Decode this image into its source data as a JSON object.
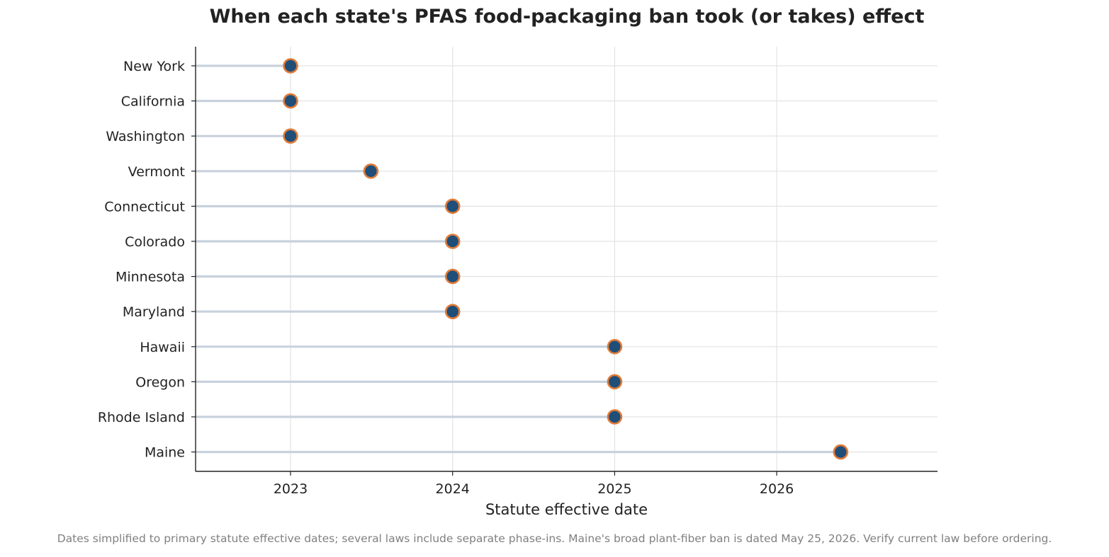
{
  "chart_data": {
    "type": "lollipop",
    "title": "When each state's PFAS food-packaging ban took (or takes) effect",
    "xlabel": "Statute effective date",
    "ylabel": "",
    "x_ticks": [
      "2023",
      "2024",
      "2025",
      "2026"
    ],
    "grid": true,
    "categories": [
      "New York",
      "California",
      "Washington",
      "Vermont",
      "Connecticut",
      "Colorado",
      "Minnesota",
      "Maryland",
      "Hawaii",
      "Oregon",
      "Rhode Island",
      "Maine"
    ],
    "values": [
      "2023-01-01",
      "2023-01-01",
      "2023-01-01",
      "2023-07-01",
      "2024-01-01",
      "2024-01-01",
      "2024-01-01",
      "2024-01-01",
      "2025-01-01",
      "2025-01-01",
      "2025-01-01",
      "2026-05-25"
    ],
    "footnote": "Dates simplified to primary statute effective dates; several laws include separate phase-ins. Maine's broad plant-fiber ban is dated May 25, 2026. Verify current law before ordering.",
    "colors": {
      "marker_fill": "#1f4e79",
      "marker_edge": "#e07b39",
      "stem": "#c8d1dd",
      "grid": "#e3e3e3",
      "axis": "#222222"
    }
  }
}
